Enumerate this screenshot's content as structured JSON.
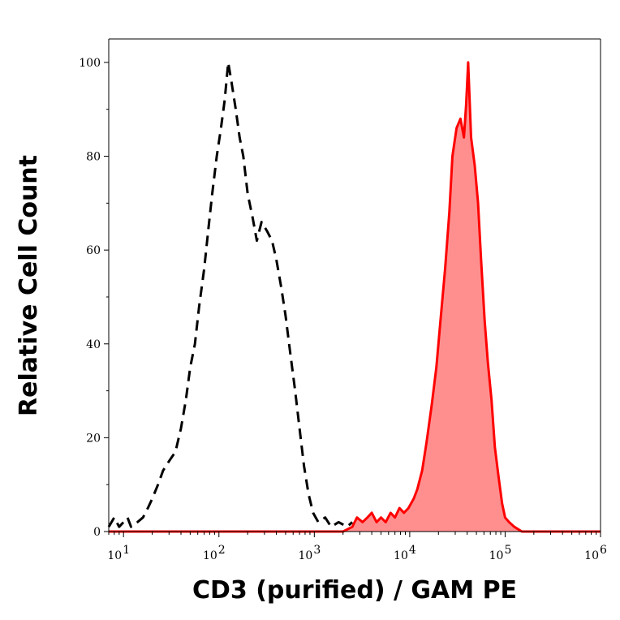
{
  "chart_data": {
    "type": "histogram",
    "xlabel": "CD3 (purified) / GAM PE",
    "ylabel": "Relative Cell Count",
    "x_scale": "log",
    "xlim": [
      7,
      1000000
    ],
    "ylim": [
      0,
      105
    ],
    "x_ticks": [
      {
        "value": 10,
        "base": "10",
        "exp": "1"
      },
      {
        "value": 100,
        "base": "10",
        "exp": "2"
      },
      {
        "value": 1000,
        "base": "10",
        "exp": "3"
      },
      {
        "value": 10000,
        "base": "10",
        "exp": "4"
      },
      {
        "value": 100000,
        "base": "10",
        "exp": "5"
      },
      {
        "value": 1000000,
        "base": "10",
        "exp": "6"
      }
    ],
    "y_ticks": [
      {
        "value": 0,
        "label": "0"
      },
      {
        "value": 20,
        "label": "20"
      },
      {
        "value": 40,
        "label": "40"
      },
      {
        "value": 60,
        "label": "60"
      },
      {
        "value": 80,
        "label": "80"
      },
      {
        "value": 100,
        "label": "100"
      }
    ],
    "grid": false,
    "series": [
      {
        "style": "dashed",
        "color": "#000000",
        "fill": "none",
        "points": [
          [
            7,
            1
          ],
          [
            8,
            3
          ],
          [
            9,
            1
          ],
          [
            10,
            2
          ],
          [
            11,
            3
          ],
          [
            12,
            1
          ],
          [
            14,
            2
          ],
          [
            16,
            3
          ],
          [
            18,
            5
          ],
          [
            20,
            7
          ],
          [
            23,
            10
          ],
          [
            26,
            13
          ],
          [
            30,
            15
          ],
          [
            35,
            17
          ],
          [
            40,
            22
          ],
          [
            45,
            28
          ],
          [
            50,
            35
          ],
          [
            56,
            40
          ],
          [
            62,
            48
          ],
          [
            70,
            56
          ],
          [
            78,
            65
          ],
          [
            85,
            72
          ],
          [
            95,
            80
          ],
          [
            105,
            86
          ],
          [
            115,
            92
          ],
          [
            125,
            100
          ],
          [
            135,
            96
          ],
          [
            150,
            90
          ],
          [
            165,
            84
          ],
          [
            180,
            80
          ],
          [
            200,
            72
          ],
          [
            225,
            67
          ],
          [
            250,
            62
          ],
          [
            280,
            66
          ],
          [
            320,
            64
          ],
          [
            360,
            62
          ],
          [
            400,
            58
          ],
          [
            450,
            52
          ],
          [
            500,
            46
          ],
          [
            560,
            38
          ],
          [
            630,
            30
          ],
          [
            700,
            22
          ],
          [
            780,
            14
          ],
          [
            870,
            8
          ],
          [
            970,
            4
          ],
          [
            1100,
            2
          ],
          [
            1300,
            3
          ],
          [
            1500,
            1
          ],
          [
            1800,
            2
          ],
          [
            2200,
            1
          ],
          [
            2500,
            2
          ]
        ]
      },
      {
        "style": "solid",
        "color": "#ff0000",
        "fill": "#ff8f8f",
        "points": [
          [
            7,
            0
          ],
          [
            100,
            0
          ],
          [
            1000,
            0
          ],
          [
            2000,
            0
          ],
          [
            2500,
            1
          ],
          [
            2800,
            3
          ],
          [
            3200,
            2
          ],
          [
            3600,
            3
          ],
          [
            4000,
            4
          ],
          [
            4500,
            2
          ],
          [
            5000,
            3
          ],
          [
            5600,
            2
          ],
          [
            6300,
            4
          ],
          [
            7000,
            3
          ],
          [
            7800,
            5
          ],
          [
            8700,
            4
          ],
          [
            9700,
            5
          ],
          [
            11000,
            7
          ],
          [
            12000,
            9
          ],
          [
            13500,
            13
          ],
          [
            15000,
            19
          ],
          [
            17000,
            27
          ],
          [
            19000,
            35
          ],
          [
            21000,
            45
          ],
          [
            23500,
            56
          ],
          [
            26000,
            68
          ],
          [
            28000,
            80
          ],
          [
            31000,
            86
          ],
          [
            34000,
            88
          ],
          [
            37000,
            84
          ],
          [
            39000,
            91
          ],
          [
            41000,
            100
          ],
          [
            44000,
            84
          ],
          [
            48000,
            78
          ],
          [
            52000,
            70
          ],
          [
            56000,
            58
          ],
          [
            61000,
            45
          ],
          [
            66000,
            36
          ],
          [
            72000,
            28
          ],
          [
            78000,
            18
          ],
          [
            85000,
            12
          ],
          [
            93000,
            6
          ],
          [
            100000,
            3
          ],
          [
            110000,
            2
          ],
          [
            125000,
            1
          ],
          [
            150000,
            0
          ],
          [
            1000000,
            0
          ]
        ]
      }
    ]
  }
}
